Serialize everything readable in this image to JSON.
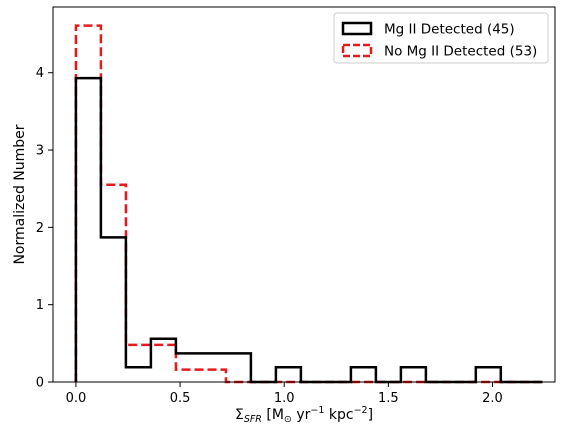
{
  "chart_data": {
    "type": "histogram",
    "xlim": [
      -0.11,
      2.3
    ],
    "ylim": [
      0,
      4.85
    ],
    "xticks": [
      0.0,
      0.5,
      1.0,
      1.5,
      2.0
    ],
    "xtick_labels": [
      "0.0",
      "0.5",
      "1.0",
      "1.5",
      "2.0"
    ],
    "yticks": [
      0,
      1,
      2,
      3,
      4
    ],
    "ytick_labels": [
      "0",
      "1",
      "2",
      "3",
      "4"
    ],
    "xlabel": {
      "sigma": "Σ",
      "sub": "SFR",
      "open": " [M",
      "sun": "⊙",
      "yr": " yr",
      "yr_exp": "−1",
      "kpc": " kpc",
      "kpc_exp": "−2",
      "close": "]"
    },
    "ylabel": "Normalized Number",
    "legend_position": "top-right",
    "series": [
      {
        "name": "Mg II Detected (45)",
        "color": "#000000",
        "style": "solid",
        "bin_edges": [
          0.0,
          0.12,
          0.24,
          0.36,
          0.48,
          0.6,
          0.72,
          0.84,
          0.96,
          1.08,
          1.2,
          1.32,
          1.44,
          1.56,
          1.68,
          1.8,
          1.92,
          2.04,
          2.16,
          2.24
        ],
        "values": [
          3.93,
          1.87,
          0.19,
          0.56,
          0.37,
          0.37,
          0.37,
          0.0,
          0.19,
          0.0,
          0.0,
          0.19,
          0.0,
          0.19,
          0.0,
          0.0,
          0.19,
          0.0,
          0.0
        ]
      },
      {
        "name": "No Mg II Detected (53)",
        "color": "#e41a1c",
        "style": "dashed",
        "bin_edges": [
          0.0,
          0.12,
          0.24,
          0.36,
          0.48,
          0.6,
          0.72,
          0.84,
          0.96,
          1.08,
          1.2,
          1.32,
          1.44,
          1.56,
          1.68,
          1.8,
          1.92,
          2.04,
          2.16,
          2.24
        ],
        "values": [
          4.61,
          2.55,
          0.48,
          0.48,
          0.16,
          0.16,
          0.0,
          0.0,
          0.0,
          0.0,
          0.0,
          0.0,
          0.0,
          0.0,
          0.0,
          0.0,
          0.0,
          0.0,
          0.0
        ]
      }
    ]
  }
}
